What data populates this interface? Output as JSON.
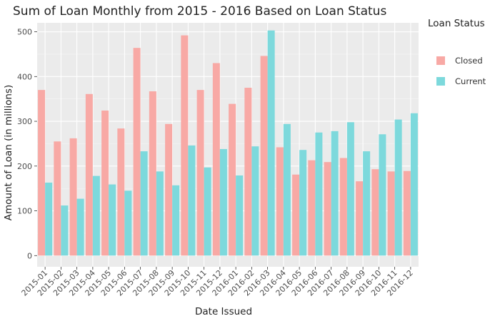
{
  "chart_data": {
    "type": "bar",
    "title": "Sum of Loan Monthly from 2015 - 2016 Based on Loan Status",
    "xlabel": "Date Issued",
    "ylabel": "Amount of Loan (in millions)",
    "legend_title": "Loan Status",
    "legend_position": "right",
    "grid": true,
    "ylim": [
      -25,
      520
    ],
    "yticks": [
      0,
      100,
      200,
      300,
      400,
      500
    ],
    "categories": [
      "2015-01",
      "2015-02",
      "2015-03",
      "2015-04",
      "2015-05",
      "2015-06",
      "2015-07",
      "2015-08",
      "2015-09",
      "2015-10",
      "2015-11",
      "2015-12",
      "2016-01",
      "2016-02",
      "2016-03",
      "2016-04",
      "2016-05",
      "2016-06",
      "2016-07",
      "2016-08",
      "2016-09",
      "2016-10",
      "2016-11",
      "2016-12"
    ],
    "series": [
      {
        "name": "Closed",
        "color": "#F8A9A5",
        "values": [
          370,
          255,
          262,
          361,
          324,
          284,
          464,
          367,
          294,
          492,
          370,
          430,
          339,
          375,
          446,
          242,
          181,
          213,
          209,
          218,
          166,
          193,
          188,
          189
        ]
      },
      {
        "name": "Current",
        "color": "#7DD9DC",
        "values": [
          163,
          112,
          127,
          178,
          159,
          145,
          233,
          188,
          157,
          246,
          197,
          238,
          179,
          244,
          503,
          294,
          236,
          275,
          278,
          298,
          233,
          271,
          304,
          318
        ]
      }
    ]
  },
  "colors": {
    "panel_background": "#EBEBEB",
    "grid_major": "#FFFFFF",
    "grid_minor": "#F5F5F5"
  }
}
